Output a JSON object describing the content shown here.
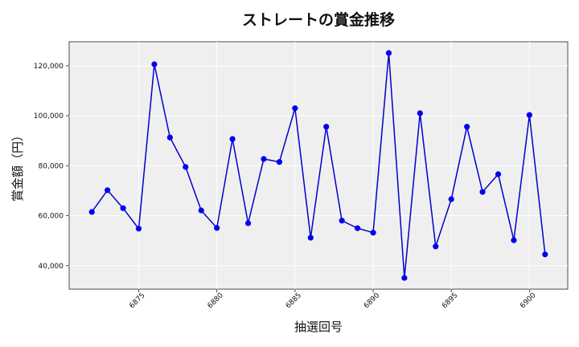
{
  "chart_data": {
    "type": "line",
    "title": "ストレートの賞金推移",
    "xlabel": "抽選回号",
    "ylabel": "賞金額（円）",
    "x": [
      6872,
      6873,
      6874,
      6875,
      6876,
      6877,
      6878,
      6879,
      6880,
      6881,
      6882,
      6883,
      6884,
      6885,
      6886,
      6887,
      6888,
      6889,
      6890,
      6891,
      6892,
      6893,
      6894,
      6895,
      6896,
      6897,
      6898,
      6899,
      6900,
      6901
    ],
    "series": [
      {
        "values": [
          61500,
          70200,
          63000,
          54800,
          120600,
          91300,
          79500,
          62100,
          55100,
          90700,
          57000,
          82700,
          81500,
          103000,
          51200,
          95600,
          58000,
          55000,
          53200,
          125100,
          35100,
          101000,
          47700,
          66600,
          95600,
          69500,
          76600,
          50200,
          100300,
          44500
        ]
      }
    ],
    "xticks": [
      6875,
      6880,
      6885,
      6890,
      6895,
      6900
    ],
    "yticks": [
      40000,
      60000,
      80000,
      100000,
      120000
    ],
    "ytick_labels": [
      "40,000",
      "60,000",
      "80,000",
      "100,000",
      "120,000"
    ],
    "xlim": [
      6870.55,
      6902.45
    ],
    "ylim": [
      30600,
      129600
    ],
    "grid": true,
    "colors": {
      "line": "#0000cc",
      "marker": "#0000ee",
      "plot_bg": "#efefef",
      "grid": "#ffffff"
    }
  }
}
